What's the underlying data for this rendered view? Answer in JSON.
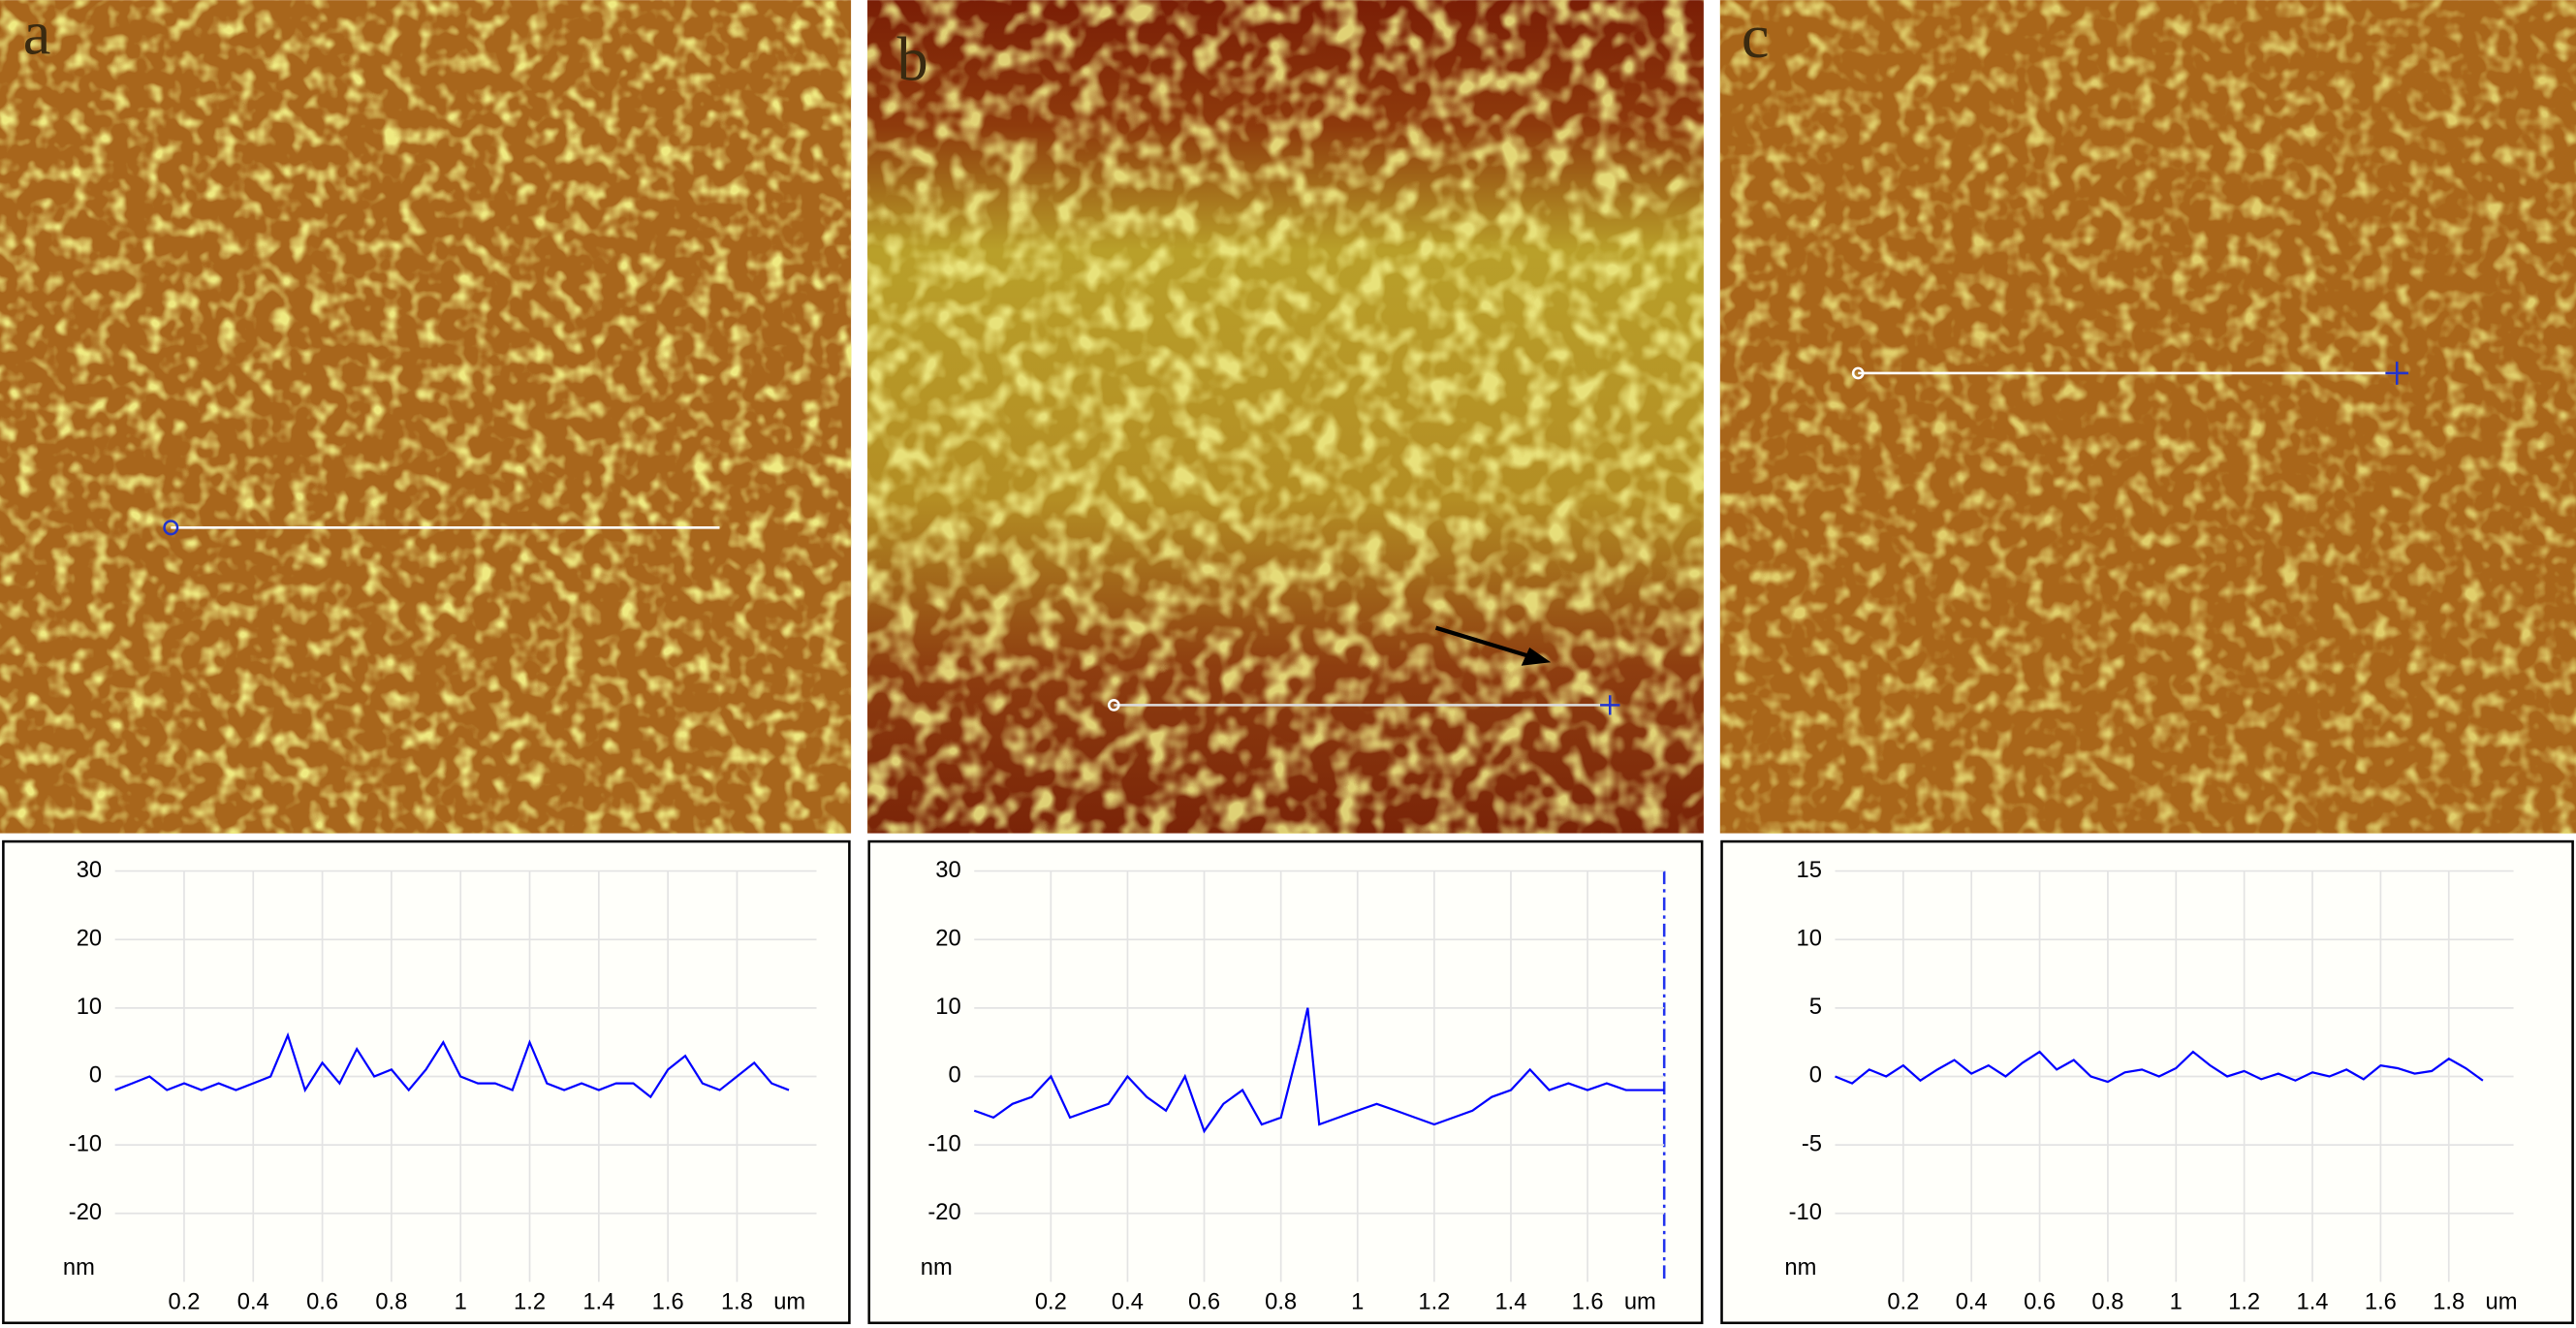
{
  "chart_data": [
    {
      "type": "line",
      "title": "a",
      "xlabel": "um",
      "ylabel": "nm",
      "color": "#0000ff",
      "grid": true,
      "xlim": [
        0,
        2.03
      ],
      "ylim": [
        -30,
        30
      ],
      "xticks": [
        0.2,
        0.4,
        0.6,
        0.8,
        1,
        1.2,
        1.4,
        1.6,
        1.8
      ],
      "yticks": [
        30,
        20,
        10,
        0,
        -10,
        -20
      ],
      "x": [
        0,
        0.05,
        0.1,
        0.15,
        0.2,
        0.25,
        0.3,
        0.35,
        0.4,
        0.45,
        0.5,
        0.55,
        0.6,
        0.65,
        0.7,
        0.75,
        0.8,
        0.85,
        0.9,
        0.95,
        1,
        1.05,
        1.1,
        1.15,
        1.2,
        1.25,
        1.3,
        1.35,
        1.4,
        1.45,
        1.5,
        1.55,
        1.6,
        1.65,
        1.7,
        1.75,
        1.8,
        1.85,
        1.9,
        1.95
      ],
      "values": [
        -2,
        -1,
        0,
        -2,
        -1,
        -2,
        -1,
        -2,
        -1,
        0,
        6,
        -2,
        2,
        -1,
        4,
        0,
        1,
        -2,
        1,
        5,
        0,
        -1,
        -1,
        -2,
        5,
        -1,
        -2,
        -1,
        -2,
        -1,
        -1,
        -3,
        1,
        3,
        -1,
        -2,
        0,
        2,
        -1,
        -2
      ]
    },
    {
      "type": "line",
      "title": "b",
      "xlabel": "um",
      "ylabel": "nm",
      "color": "#0000ff",
      "grid": true,
      "xlim": [
        0,
        1.8
      ],
      "ylim": [
        -30,
        30
      ],
      "xticks": [
        0.2,
        0.4,
        0.6,
        0.8,
        1,
        1.2,
        1.4,
        1.6
      ],
      "yticks": [
        30,
        20,
        10,
        0,
        -10,
        -20
      ],
      "x": [
        0,
        0.05,
        0.1,
        0.15,
        0.2,
        0.25,
        0.3,
        0.35,
        0.4,
        0.45,
        0.5,
        0.55,
        0.6,
        0.65,
        0.7,
        0.75,
        0.8,
        0.85,
        0.87,
        0.9,
        0.95,
        1,
        1.05,
        1.1,
        1.15,
        1.2,
        1.25,
        1.3,
        1.35,
        1.4,
        1.45,
        1.5,
        1.55,
        1.6,
        1.65,
        1.7,
        1.75,
        1.8
      ],
      "values": [
        -5,
        -6,
        -4,
        -3,
        0,
        -6,
        -5,
        -4,
        0,
        -3,
        -5,
        0,
        -8,
        -4,
        -2,
        -7,
        -6,
        5,
        10,
        -7,
        -6,
        -5,
        -4,
        -5,
        -6,
        -7,
        -6,
        -5,
        -3,
        -2,
        1,
        -2,
        -1,
        -2,
        -1,
        -2,
        -2,
        -2
      ]
    },
    {
      "type": "line",
      "title": "c",
      "xlabel": "um",
      "ylabel": "nm",
      "color": "#0000ff",
      "grid": true,
      "xlim": [
        0,
        1.99
      ],
      "ylim": [
        -15,
        15
      ],
      "xticks": [
        0.2,
        0.4,
        0.6,
        0.8,
        1,
        1.2,
        1.4,
        1.6,
        1.8
      ],
      "yticks": [
        15,
        10,
        5,
        0,
        -5,
        -10
      ],
      "x": [
        0,
        0.05,
        0.1,
        0.15,
        0.2,
        0.25,
        0.3,
        0.35,
        0.4,
        0.45,
        0.5,
        0.55,
        0.6,
        0.65,
        0.7,
        0.75,
        0.8,
        0.85,
        0.9,
        0.95,
        1,
        1.05,
        1.1,
        1.15,
        1.2,
        1.25,
        1.3,
        1.35,
        1.4,
        1.45,
        1.5,
        1.55,
        1.6,
        1.65,
        1.7,
        1.75,
        1.8,
        1.85,
        1.9
      ],
      "values": [
        0,
        -0.5,
        0.5,
        0,
        0.8,
        -0.3,
        0.5,
        1.2,
        0.2,
        0.8,
        0,
        1,
        1.8,
        0.5,
        1.2,
        0,
        -0.4,
        0.3,
        0.5,
        0,
        0.6,
        1.8,
        0.8,
        0,
        0.4,
        -0.2,
        0.2,
        -0.3,
        0.3,
        0,
        0.5,
        -0.2,
        0.8,
        0.6,
        0.2,
        0.4,
        1.3,
        0.6,
        -0.3
      ]
    }
  ]
}
